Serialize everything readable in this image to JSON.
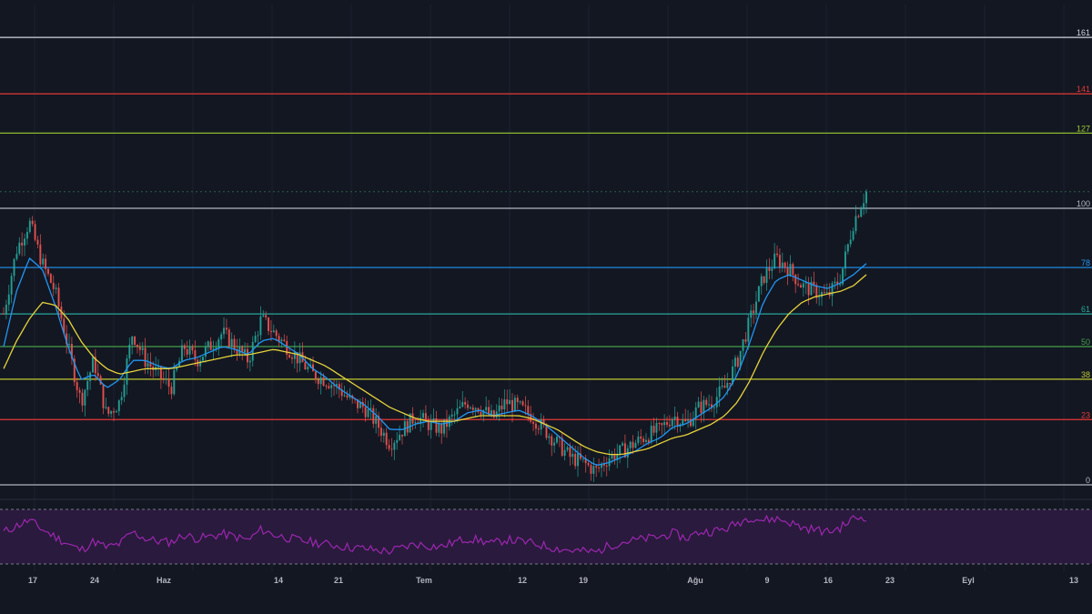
{
  "chart_data": {
    "type": "candlestick",
    "colors": {
      "background": "#131722",
      "up": "#26a69a",
      "down": "#ef5350",
      "ma_fast": "#2196f3",
      "ma_slow": "#e6d33a",
      "rsi_line": "#9c27b0",
      "rsi_band": "#2a1a3d"
    },
    "fib_levels": [
      {
        "label": "0",
        "value": 0,
        "color": "#b2b5be"
      },
      {
        "label": "23",
        "value": 0.236,
        "color": "#e53935"
      },
      {
        "label": "38",
        "value": 0.382,
        "color": "#c0ca33"
      },
      {
        "label": "50",
        "value": 0.5,
        "color": "#43a047"
      },
      {
        "label": "61",
        "value": 0.618,
        "color": "#26a69a"
      },
      {
        "label": "78",
        "value": 0.786,
        "color": "#2196f3"
      },
      {
        "label": "100",
        "value": 1.0,
        "color": "#b2b5be"
      },
      {
        "label": "127",
        "value": 1.272,
        "color": "#9ccc33"
      },
      {
        "label": "141",
        "value": 1.414,
        "color": "#e53935"
      },
      {
        "label": "161",
        "value": 1.618,
        "color": "#d1d4dc"
      }
    ],
    "last_price_level": 1.06,
    "xlabels": [
      "17",
      "24",
      "Haz",
      "14",
      "21",
      "Tem",
      "12",
      "19",
      "Ağu",
      "9",
      "16",
      "23",
      "Eyl",
      "13"
    ],
    "close": [
      0.62,
      0.85,
      0.95,
      0.8,
      0.7,
      0.5,
      0.3,
      0.45,
      0.25,
      0.3,
      0.55,
      0.45,
      0.4,
      0.35,
      0.5,
      0.45,
      0.5,
      0.55,
      0.5,
      0.45,
      0.6,
      0.55,
      0.5,
      0.45,
      0.4,
      0.38,
      0.35,
      0.3,
      0.28,
      0.22,
      0.15,
      0.2,
      0.25,
      0.22,
      0.2,
      0.25,
      0.3,
      0.28,
      0.24,
      0.3,
      0.28,
      0.25,
      0.2,
      0.15,
      0.1,
      0.08,
      0.05,
      0.1,
      0.12,
      0.15,
      0.18,
      0.2,
      0.25,
      0.22,
      0.28,
      0.3,
      0.35,
      0.45,
      0.6,
      0.75,
      0.82,
      0.78,
      0.72,
      0.7,
      0.68,
      0.75,
      0.95,
      1.06
    ],
    "ma_fast": [
      0.5,
      0.7,
      0.82,
      0.78,
      0.65,
      0.5,
      0.38,
      0.4,
      0.35,
      0.38,
      0.45,
      0.45,
      0.43,
      0.42,
      0.45,
      0.46,
      0.48,
      0.5,
      0.49,
      0.47,
      0.52,
      0.53,
      0.5,
      0.47,
      0.42,
      0.39,
      0.35,
      0.32,
      0.29,
      0.25,
      0.2,
      0.2,
      0.22,
      0.23,
      0.22,
      0.23,
      0.26,
      0.27,
      0.25,
      0.26,
      0.27,
      0.25,
      0.22,
      0.18,
      0.14,
      0.1,
      0.07,
      0.08,
      0.1,
      0.12,
      0.15,
      0.17,
      0.21,
      0.22,
      0.25,
      0.28,
      0.32,
      0.4,
      0.52,
      0.66,
      0.74,
      0.76,
      0.74,
      0.72,
      0.71,
      0.73,
      0.76,
      0.8
    ],
    "ma_slow": [
      0.42,
      0.52,
      0.6,
      0.66,
      0.65,
      0.6,
      0.52,
      0.46,
      0.42,
      0.4,
      0.41,
      0.42,
      0.42,
      0.42,
      0.43,
      0.44,
      0.45,
      0.46,
      0.47,
      0.47,
      0.48,
      0.49,
      0.48,
      0.47,
      0.45,
      0.43,
      0.4,
      0.37,
      0.34,
      0.31,
      0.28,
      0.26,
      0.24,
      0.23,
      0.23,
      0.23,
      0.24,
      0.25,
      0.25,
      0.25,
      0.25,
      0.24,
      0.22,
      0.2,
      0.17,
      0.14,
      0.12,
      0.11,
      0.11,
      0.12,
      0.13,
      0.15,
      0.17,
      0.18,
      0.2,
      0.22,
      0.25,
      0.3,
      0.38,
      0.48,
      0.56,
      0.62,
      0.66,
      0.68,
      0.69,
      0.7,
      0.72,
      0.76
    ],
    "rsi": [
      55,
      62,
      68,
      58,
      50,
      42,
      35,
      45,
      38,
      42,
      55,
      48,
      45,
      44,
      52,
      48,
      50,
      53,
      50,
      46,
      58,
      52,
      49,
      46,
      44,
      42,
      40,
      38,
      37,
      35,
      34,
      38,
      42,
      40,
      39,
      44,
      48,
      46,
      42,
      47,
      45,
      43,
      40,
      37,
      35,
      34,
      33,
      40,
      44,
      46,
      48,
      50,
      54,
      48,
      55,
      56,
      58,
      65,
      72,
      68,
      70,
      66,
      60,
      58,
      55,
      60,
      70,
      72
    ]
  }
}
